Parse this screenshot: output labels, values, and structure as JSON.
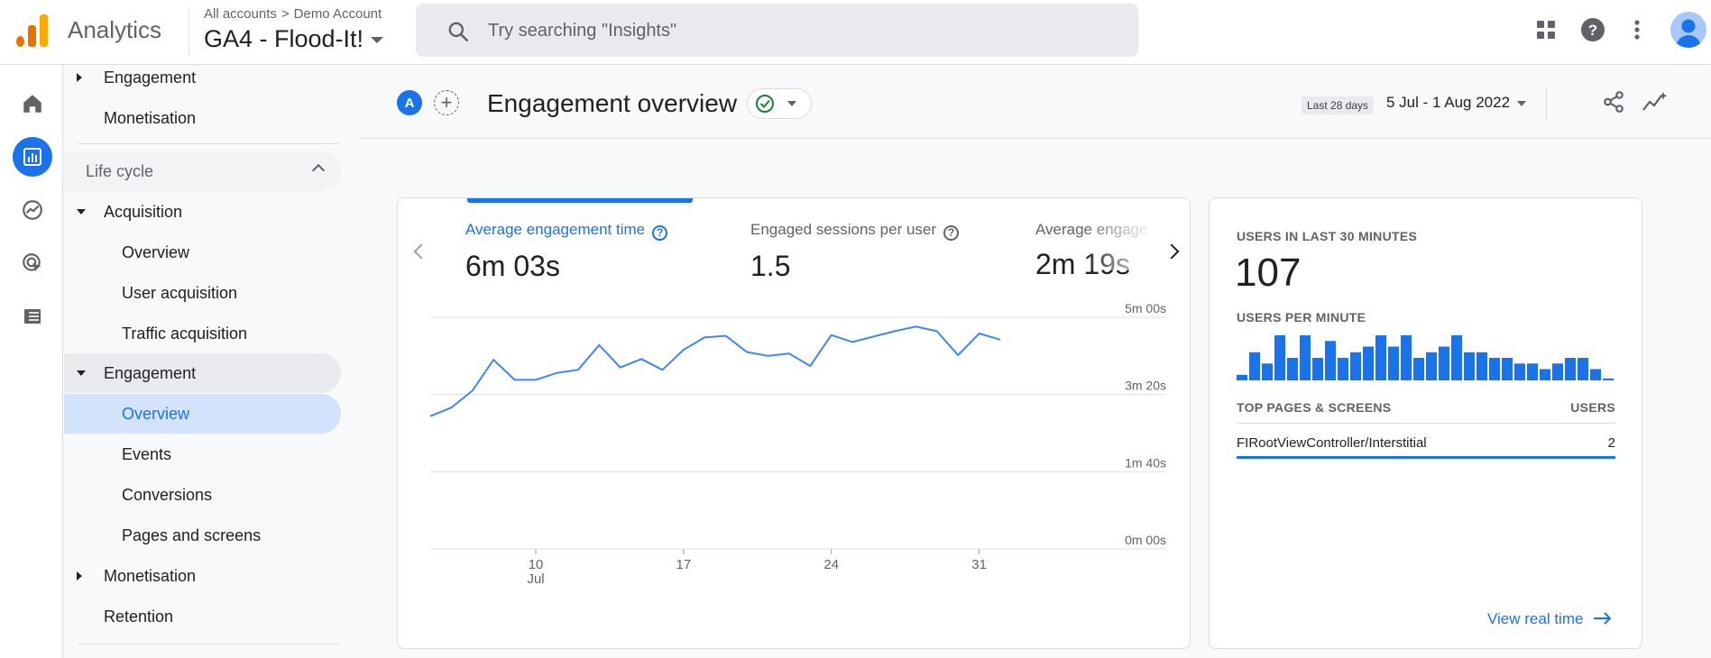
{
  "app": {
    "name": "Analytics"
  },
  "breadcrumb": {
    "all_accounts": "All accounts",
    "sep": ">",
    "account": "Demo Account",
    "property": "GA4 - Flood-It!"
  },
  "search": {
    "placeholder": "Try searching \"Insights\""
  },
  "topbar_icons": [
    "apps-grid-icon",
    "help-icon",
    "more-vert-icon",
    "account-avatar"
  ],
  "rail": [
    "home-icon",
    "reports-icon",
    "explore-icon",
    "advertising-icon",
    "configure-icon"
  ],
  "nav": {
    "items": [
      {
        "label": "Engagement",
        "expand": "collapsed"
      },
      {
        "label": "Monetisation"
      }
    ],
    "section": "Life cycle",
    "life_cycle": [
      {
        "label": "Acquisition",
        "expand": "expanded"
      },
      {
        "label": "Overview"
      },
      {
        "label": "User acquisition"
      },
      {
        "label": "Traffic acquisition"
      },
      {
        "label": "Engagement",
        "expand": "expanded"
      },
      {
        "label": "Overview",
        "selected": true
      },
      {
        "label": "Events"
      },
      {
        "label": "Conversions"
      },
      {
        "label": "Pages and screens"
      },
      {
        "label": "Monetisation",
        "expand": "collapsed"
      },
      {
        "label": "Retention"
      }
    ]
  },
  "header": {
    "comparison_badge": "A",
    "title": "Engagement overview",
    "date_label": "Last 28 days",
    "date_range": "5 Jul - 1 Aug 2022"
  },
  "metrics": [
    {
      "label": "Average engagement time",
      "value": "6m 03s",
      "active": true
    },
    {
      "label": "Engaged sessions per user",
      "value": "1.5"
    },
    {
      "label": "Average engage",
      "value": "2m 19s"
    }
  ],
  "chart_data": {
    "type": "line",
    "series": [
      {
        "values": [
          172,
          183,
          205,
          245,
          219,
          219,
          228,
          232,
          264,
          235,
          246,
          232,
          258,
          274,
          276,
          255,
          250,
          253,
          237,
          277,
          268,
          275,
          282,
          288,
          282,
          251,
          279,
          271
        ]
      }
    ],
    "x_ticks": [
      {
        "label": "10",
        "sub": "Jul",
        "index": 5
      },
      {
        "label": "17",
        "sub": "",
        "index": 12
      },
      {
        "label": "24",
        "sub": "",
        "index": 19
      },
      {
        "label": "31",
        "sub": "",
        "index": 26
      }
    ],
    "y_ticks": [
      "0m 00s",
      "1m 40s",
      "3m 20s",
      "5m 00s"
    ],
    "y_unit": "seconds",
    "ylim": [
      0,
      300
    ],
    "color": "#4285f4"
  },
  "realtime": {
    "users_label": "USERS IN LAST 30 MINUTES",
    "users_count": "107",
    "per_minute_label": "USERS PER MINUTE",
    "per_minute": [
      1,
      5,
      3,
      8,
      4,
      8,
      4,
      7,
      4,
      5,
      6,
      8,
      6,
      8,
      4,
      5,
      6,
      8,
      5,
      5,
      4,
      4,
      3,
      3,
      2,
      3,
      4,
      4,
      2,
      0
    ],
    "table_header": "TOP PAGES & SCREENS",
    "table_col": "USERS",
    "rows": [
      {
        "page": "FIRootViewController/Interstitial",
        "users": "2"
      }
    ],
    "link": "View real time",
    "accent": "#1a73e8"
  }
}
